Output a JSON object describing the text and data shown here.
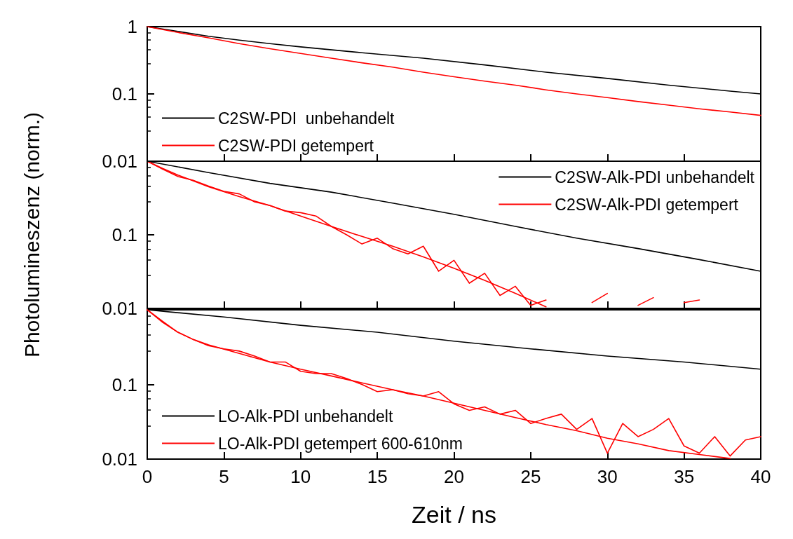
{
  "chart_data": [
    {
      "type": "line",
      "log": "y",
      "xlim": [
        0,
        40
      ],
      "xticks": [
        0,
        5,
        10,
        15,
        20,
        25,
        30,
        35,
        40
      ],
      "ylim": [
        0.01,
        1
      ],
      "yticks": [
        1,
        0.1,
        0.01
      ],
      "tick_labels": "y",
      "grid": false,
      "legend": "bottom left",
      "marker": "none",
      "line_style": "solid",
      "series": [
        {
          "name": "C2SW-PDI  unbehandelt",
          "color": "#000000",
          "x": [
            0,
            2,
            4,
            6,
            8,
            10,
            14,
            18,
            22,
            26,
            30,
            34,
            38,
            40
          ],
          "values": [
            1,
            0.85,
            0.72,
            0.63,
            0.56,
            0.5,
            0.41,
            0.34,
            0.27,
            0.21,
            0.17,
            0.135,
            0.11,
            0.1
          ]
        },
        {
          "name": "C2SW-PDI getempert",
          "color": "#ff0000",
          "x": [
            0,
            2,
            4,
            6,
            8,
            10,
            12,
            14,
            16,
            18,
            20,
            22,
            24,
            26,
            28,
            30,
            32,
            34,
            36,
            38,
            40
          ],
          "values": [
            1,
            0.82,
            0.68,
            0.56,
            0.47,
            0.4,
            0.34,
            0.29,
            0.25,
            0.21,
            0.18,
            0.155,
            0.135,
            0.115,
            0.1,
            0.088,
            0.077,
            0.068,
            0.06,
            0.054,
            0.048
          ]
        }
      ]
    },
    {
      "type": "line",
      "log": "y",
      "xlim": [
        0,
        40
      ],
      "xticks": [
        0,
        5,
        10,
        15,
        20,
        25,
        30,
        35,
        40
      ],
      "ylim": [
        0.01,
        1
      ],
      "yticks": [
        {
          "value": 1,
          "label": null
        },
        0.1,
        0.01
      ],
      "tick_labels": "y",
      "grid": false,
      "legend": "top right",
      "marker": "none",
      "line_style": "solid",
      "ylabel": "Photolumineszenz (norm.)",
      "series": [
        {
          "name": "C2SW-Alk-PDI unbehandelt",
          "color": "#000000",
          "x": [
            0,
            4,
            8,
            12,
            16,
            20,
            24,
            28,
            32,
            36,
            40
          ],
          "values": [
            1,
            0.7,
            0.5,
            0.38,
            0.27,
            0.19,
            0.13,
            0.09,
            0.065,
            0.046,
            0.032
          ]
        },
        {
          "name": "C2SW-Alk-PDI getempert",
          "color": "#ff0000",
          "x": [
            0,
            1,
            2,
            3,
            4,
            5,
            6,
            7,
            8,
            9,
            10,
            11,
            12,
            13,
            14,
            15,
            16,
            17,
            18,
            19,
            20,
            21,
            22,
            23,
            24,
            25,
            26,
            27,
            28,
            29,
            30,
            31,
            32,
            33,
            34,
            35,
            36
          ],
          "values": [
            1,
            0.78,
            0.62,
            0.55,
            0.46,
            0.39,
            0.36,
            0.28,
            0.25,
            0.21,
            0.2,
            0.18,
            0.13,
            0.1,
            0.075,
            0.09,
            0.065,
            0.055,
            0.07,
            0.032,
            0.045,
            0.022,
            0.03,
            0.015,
            0.02,
            0.011,
            0.013,
            null,
            null,
            0.012,
            0.016,
            null,
            0.011,
            0.014,
            null,
            0.012,
            0.013
          ]
        },
        {
          "color": "#ff0000",
          "x": [
            0,
            1,
            2,
            4,
            6,
            8,
            10,
            12,
            14,
            16,
            18,
            20,
            22,
            24,
            26
          ],
          "values": [
            1,
            0.8,
            0.65,
            0.45,
            0.33,
            0.25,
            0.18,
            0.13,
            0.095,
            0.07,
            0.05,
            0.035,
            0.024,
            0.016,
            0.0105
          ]
        }
      ]
    },
    {
      "type": "line",
      "log": "y",
      "xlim": [
        0,
        40
      ],
      "xticks": [
        0,
        5,
        10,
        15,
        20,
        25,
        30,
        35,
        40
      ],
      "ylim": [
        0.01,
        1
      ],
      "yticks": [
        {
          "value": 1,
          "label": null
        },
        0.1,
        0.01
      ],
      "grid": false,
      "legend": "bottom left",
      "marker": "none",
      "line_style": "solid",
      "xlabel": "Zeit / ns",
      "series": [
        {
          "name": "LO-Alk-PDI unbehandelt",
          "color": "#000000",
          "x": [
            0,
            5,
            10,
            15,
            20,
            25,
            30,
            35,
            40
          ],
          "values": [
            1,
            0.8,
            0.62,
            0.5,
            0.38,
            0.3,
            0.24,
            0.2,
            0.16
          ]
        },
        {
          "name": "LO-Alk-PDI getempert 600-610nm",
          "color": "#ff0000",
          "x": [
            0,
            1,
            2,
            3,
            4,
            5,
            6,
            7,
            8,
            9,
            10,
            11,
            12,
            13,
            14,
            15,
            16,
            17,
            18,
            19,
            20,
            21,
            22,
            23,
            24,
            25,
            26,
            27,
            28,
            29,
            30,
            31,
            32,
            33,
            34,
            35,
            36,
            37,
            38,
            39,
            40
          ],
          "values": [
            1,
            0.68,
            0.5,
            0.4,
            0.33,
            0.3,
            0.28,
            0.24,
            0.2,
            0.2,
            0.15,
            0.14,
            0.14,
            0.12,
            0.1,
            0.08,
            0.085,
            0.075,
            0.07,
            0.08,
            0.055,
            0.045,
            0.05,
            0.04,
            0.045,
            0.03,
            0.035,
            0.04,
            0.025,
            0.035,
            0.012,
            0.03,
            0.02,
            0.025,
            0.035,
            0.015,
            0.012,
            0.02,
            0.011,
            0.018,
            0.02
          ]
        },
        {
          "color": "#ff0000",
          "x": [
            0,
            1,
            2,
            3,
            4,
            6,
            8,
            10,
            12,
            14,
            16,
            18,
            20,
            22,
            24,
            26,
            28,
            30,
            32,
            34,
            36,
            38
          ],
          "values": [
            1,
            0.7,
            0.5,
            0.4,
            0.34,
            0.26,
            0.2,
            0.16,
            0.13,
            0.105,
            0.085,
            0.07,
            0.056,
            0.045,
            0.036,
            0.029,
            0.024,
            0.019,
            0.016,
            0.013,
            0.0115,
            0.0102
          ]
        }
      ]
    }
  ]
}
